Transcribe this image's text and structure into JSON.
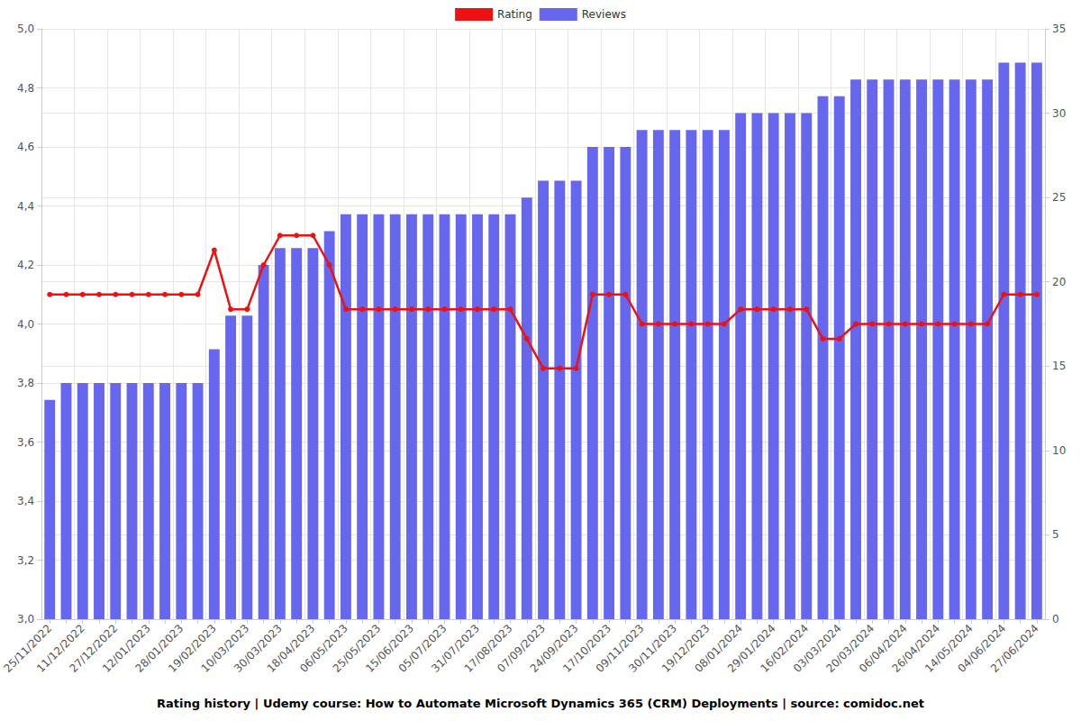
{
  "chart_data": {
    "type": "bar",
    "title": "Rating history | Udemy course: How to Automate Microsoft Dynamics 365 (CRM) Deployments | source: comidoc.net",
    "categories": [
      "25/11/2022",
      null,
      "11/12/2022",
      null,
      "27/12/2022",
      null,
      "12/01/2023",
      null,
      "28/01/2023",
      null,
      "19/02/2023",
      null,
      "10/03/2023",
      null,
      "30/03/2023",
      null,
      "18/04/2023",
      null,
      "06/05/2023",
      null,
      "25/05/2023",
      null,
      "15/06/2023",
      null,
      "05/07/2023",
      null,
      "31/07/2023",
      null,
      "17/08/2023",
      null,
      "07/09/2023",
      null,
      "24/09/2023",
      null,
      "17/10/2023",
      null,
      "09/11/2023",
      null,
      "30/11/2023",
      null,
      "19/12/2023",
      null,
      "08/01/2024",
      null,
      "29/01/2024",
      null,
      "16/02/2024",
      null,
      "03/03/2024",
      null,
      "20/03/2024",
      null,
      "06/04/2024",
      null,
      "26/04/2024",
      null,
      "14/05/2024",
      null,
      "04/06/2024",
      null,
      "27/06/2024"
    ],
    "series": [
      {
        "name": "Rating",
        "type": "line",
        "color": "#ee1111",
        "marker": "circle",
        "values": [
          4.1,
          4.1,
          4.1,
          4.1,
          4.1,
          4.1,
          4.1,
          4.1,
          4.1,
          4.1,
          4.25,
          4.05,
          4.05,
          4.2,
          4.3,
          4.3,
          4.3,
          4.2,
          4.05,
          4.05,
          4.05,
          4.05,
          4.05,
          4.05,
          4.05,
          4.05,
          4.05,
          4.05,
          4.05,
          3.95,
          3.85,
          3.85,
          3.85,
          4.1,
          4.1,
          4.1,
          4.0,
          4.0,
          4.0,
          4.0,
          4.0,
          4.0,
          4.05,
          4.05,
          4.05,
          4.05,
          4.05,
          3.95,
          3.95,
          4.0,
          4.0,
          4.0,
          4.0,
          4.0,
          4.0,
          4.0,
          4.0,
          4.0,
          4.1,
          4.1,
          4.1
        ]
      },
      {
        "name": "Reviews",
        "type": "bar",
        "color": "#6666ee",
        "axis": "y2",
        "values": [
          13,
          14,
          14,
          14,
          14,
          14,
          14,
          14,
          14,
          14,
          16,
          18,
          18,
          21,
          22,
          22,
          22,
          23,
          24,
          24,
          24,
          24,
          24,
          24,
          24,
          24,
          24,
          24,
          24,
          25,
          26,
          26,
          26,
          28,
          28,
          28,
          29,
          29,
          29,
          29,
          29,
          29,
          30,
          30,
          30,
          30,
          30,
          31,
          31,
          32,
          32,
          32,
          32,
          32,
          32,
          32,
          32,
          32,
          33,
          33,
          33
        ]
      }
    ],
    "ylim": [
      3,
      5
    ],
    "yticks": [
      {
        "value": 3,
        "label": "3,0"
      },
      {
        "value": 3.2,
        "label": "3,2"
      },
      {
        "value": 3.4,
        "label": "3,4"
      },
      {
        "value": 3.6,
        "label": "3,6"
      },
      {
        "value": 3.8,
        "label": "3,8"
      },
      {
        "value": 4,
        "label": "4,0"
      },
      {
        "value": 4.2,
        "label": "4,2"
      },
      {
        "value": 4.4,
        "label": "4,4"
      },
      {
        "value": 4.6,
        "label": "4,6"
      },
      {
        "value": 4.8,
        "label": "4,8"
      },
      {
        "value": 5,
        "label": "5,0"
      }
    ],
    "y2lim": [
      0,
      35
    ],
    "y2ticks": [
      0,
      5,
      10,
      15,
      20,
      25,
      30,
      35
    ],
    "grid": true,
    "legend": "top"
  }
}
